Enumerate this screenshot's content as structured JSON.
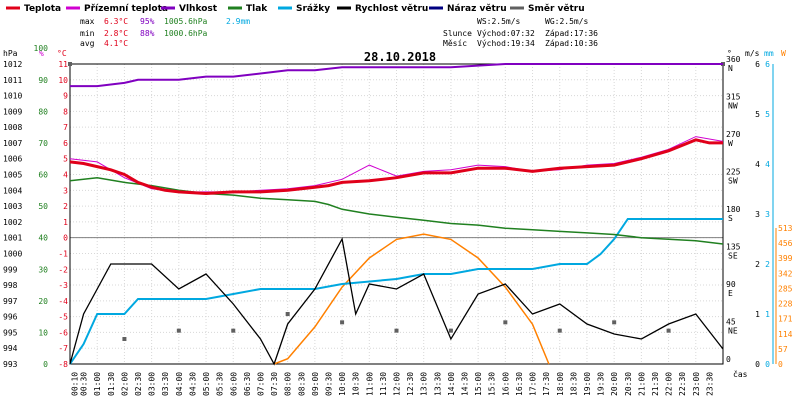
{
  "legend": [
    {
      "label": "Teplota",
      "color": "#e0001a"
    },
    {
      "label": "Přízemní teplota",
      "color": "#d000d0"
    },
    {
      "label": "Vlhkost",
      "color": "#8000c0"
    },
    {
      "label": "Tlak",
      "color": "#208020"
    },
    {
      "label": "Srážky",
      "color": "#00a8e0"
    },
    {
      "label": "Rychlost větru",
      "color": "#000000"
    },
    {
      "label": "Náraz větru",
      "color": "#000080"
    },
    {
      "label": "Směr větru",
      "color": "#606060"
    }
  ],
  "stats": {
    "max": {
      "label": "max",
      "temp": "6.3°C",
      "hum": "95%",
      "press": "1005.6hPa",
      "rain": "2.9mm"
    },
    "min": {
      "label": "min",
      "temp": "2.8°C",
      "hum": "88%",
      "press": "1000.6hPa"
    },
    "avg": {
      "label": "avg",
      "temp": "4.1°C"
    }
  },
  "info": {
    "ws": "WS:2.5m/s",
    "wg": "WG:2.5m/s",
    "sun_label": "Slunce",
    "sun_rise": "Východ:07:32",
    "sun_set": "Západ:17:36",
    "moon_label": "Měsíc",
    "moon_rise": "Východ:19:34",
    "moon_set": "Západ:10:36"
  },
  "units": {
    "hpa": "hPa",
    "pct": "%",
    "degc": "°C",
    "deg": "°",
    "ms": "m/s",
    "mm": "mm",
    "wm2": "W",
    "time": "čas"
  },
  "colors": {
    "temp": "#e0001a",
    "ground": "#d000d0",
    "hum": "#8000c0",
    "press": "#208020",
    "rain": "#00a8e0",
    "wind": "#000000",
    "gust": "#000080",
    "dir": "#606060",
    "solar": "#ff8000"
  },
  "chart_data": {
    "type": "line",
    "title": "28.10.2018",
    "x_ticks": [
      "00:10",
      "00:30",
      "01:00",
      "01:30",
      "02:00",
      "02:30",
      "03:00",
      "03:30",
      "04:00",
      "04:30",
      "05:00",
      "05:30",
      "06:00",
      "06:30",
      "07:00",
      "07:30",
      "08:00",
      "08:30",
      "09:00",
      "09:30",
      "10:00",
      "10:30",
      "11:00",
      "11:30",
      "12:00",
      "12:30",
      "13:00",
      "13:30",
      "14:00",
      "14:30",
      "15:00",
      "15:30",
      "16:00",
      "16:30",
      "17:00",
      "17:30",
      "18:00",
      "18:30",
      "19:00",
      "19:30",
      "20:00",
      "20:30",
      "21:00",
      "21:30",
      "22:00",
      "22:30",
      "23:00",
      "23:30"
    ],
    "axes": {
      "pressure_ticks": [
        "993",
        "994",
        "995",
        "996",
        "997",
        "998",
        "999",
        "1000",
        "1001",
        "1002",
        "1003",
        "1004",
        "1005",
        "1006",
        "1007",
        "1008",
        "1009",
        "1010",
        "1011",
        "1012"
      ],
      "humidity_ticks": [
        "0",
        "10",
        "20",
        "30",
        "40",
        "50",
        "60",
        "70",
        "80",
        "90",
        "100"
      ],
      "temp_ticks": [
        "-8",
        "-7",
        "-6",
        "-5",
        "-4",
        "-3",
        "-2",
        "-1",
        "0",
        "1",
        "2",
        "3",
        "4",
        "5",
        "6",
        "7",
        "8",
        "9",
        "10",
        "11"
      ],
      "dir_ticks": [
        "0",
        "45",
        "90",
        "135",
        "180",
        "225",
        "270",
        "315",
        "360"
      ],
      "dir_names": [
        "",
        "NE",
        "E",
        "SE",
        "S",
        "SW",
        "W",
        "NW",
        "N"
      ],
      "wind_ticks": [
        "0",
        "1",
        "2",
        "3",
        "4",
        "5",
        "6"
      ],
      "rain_ticks": [
        "0",
        "1",
        "2",
        "3",
        "4",
        "5",
        "6"
      ],
      "solar_ticks": [
        "0",
        "57",
        "114",
        "171",
        "228",
        "285",
        "342",
        "399",
        "456",
        "513"
      ]
    },
    "temperature": [
      [
        0,
        4.8
      ],
      [
        0.5,
        4.7
      ],
      [
        1,
        4.5
      ],
      [
        1.5,
        4.3
      ],
      [
        2,
        4
      ],
      [
        2.5,
        3.5
      ],
      [
        3,
        3.2
      ],
      [
        3.5,
        3
      ],
      [
        4,
        2.9
      ],
      [
        5,
        2.8
      ],
      [
        6,
        2.9
      ],
      [
        7,
        2.9
      ],
      [
        8,
        3
      ],
      [
        9,
        3.2
      ],
      [
        9.5,
        3.3
      ],
      [
        10,
        3.5
      ],
      [
        11,
        3.6
      ],
      [
        12,
        3.8
      ],
      [
        13,
        4.1
      ],
      [
        14,
        4.1
      ],
      [
        15,
        4.4
      ],
      [
        16,
        4.4
      ],
      [
        17,
        4.2
      ],
      [
        18,
        4.4
      ],
      [
        19,
        4.5
      ],
      [
        20,
        4.6
      ],
      [
        21,
        5
      ],
      [
        22,
        5.5
      ],
      [
        23,
        6.2
      ],
      [
        23.5,
        6
      ],
      [
        24,
        6
      ]
    ],
    "ground_temperature": [
      [
        0,
        5
      ],
      [
        1,
        4.8
      ],
      [
        2,
        3.8
      ],
      [
        3,
        3.1
      ],
      [
        4,
        2.9
      ],
      [
        6,
        2.9
      ],
      [
        8,
        3.1
      ],
      [
        9,
        3.3
      ],
      [
        10,
        3.7
      ],
      [
        11,
        4.6
      ],
      [
        12,
        3.9
      ],
      [
        13,
        4.2
      ],
      [
        14,
        4.3
      ],
      [
        15,
        4.6
      ],
      [
        16,
        4.5
      ],
      [
        17,
        4.2
      ],
      [
        18,
        4.3
      ],
      [
        19,
        4.6
      ],
      [
        20,
        4.7
      ],
      [
        21,
        5.1
      ],
      [
        22,
        5.6
      ],
      [
        23,
        6.4
      ],
      [
        24,
        6.1
      ]
    ],
    "humidity": [
      [
        0,
        88
      ],
      [
        1,
        88
      ],
      [
        2,
        89
      ],
      [
        2.5,
        90
      ],
      [
        4,
        90
      ],
      [
        5,
        91
      ],
      [
        6,
        91
      ],
      [
        7,
        92
      ],
      [
        8,
        93
      ],
      [
        9,
        93
      ],
      [
        10,
        94
      ],
      [
        12,
        94
      ],
      [
        14,
        94
      ],
      [
        16,
        95
      ],
      [
        18,
        95
      ],
      [
        20,
        95
      ],
      [
        22,
        95
      ],
      [
        24,
        95
      ]
    ],
    "pressure": [
      [
        0,
        1004.6
      ],
      [
        1,
        1004.8
      ],
      [
        2,
        1004.5
      ],
      [
        3,
        1004.3
      ],
      [
        4,
        1004
      ],
      [
        5,
        1003.8
      ],
      [
        6,
        1003.7
      ],
      [
        7,
        1003.5
      ],
      [
        8,
        1003.4
      ],
      [
        9,
        1003.3
      ],
      [
        9.5,
        1003.1
      ],
      [
        10,
        1002.8
      ],
      [
        11,
        1002.5
      ],
      [
        12,
        1002.3
      ],
      [
        13,
        1002.1
      ],
      [
        14,
        1001.9
      ],
      [
        15,
        1001.8
      ],
      [
        16,
        1001.6
      ],
      [
        17,
        1001.5
      ],
      [
        18,
        1001.4
      ],
      [
        19,
        1001.3
      ],
      [
        20,
        1001.2
      ],
      [
        21,
        1001
      ],
      [
        22,
        1000.9
      ],
      [
        23,
        1000.8
      ],
      [
        24,
        1000.6
      ]
    ],
    "rain_total": [
      [
        0,
        0
      ],
      [
        0.5,
        0.4
      ],
      [
        1,
        1
      ],
      [
        2,
        1
      ],
      [
        2.5,
        1.3
      ],
      [
        4,
        1.3
      ],
      [
        5,
        1.3
      ],
      [
        6,
        1.4
      ],
      [
        7,
        1.5
      ],
      [
        9,
        1.5
      ],
      [
        10,
        1.6
      ],
      [
        12,
        1.7
      ],
      [
        13,
        1.8
      ],
      [
        14,
        1.8
      ],
      [
        15,
        1.9
      ],
      [
        17,
        1.9
      ],
      [
        18,
        2
      ],
      [
        19,
        2
      ],
      [
        19.5,
        2.2
      ],
      [
        20,
        2.5
      ],
      [
        20.5,
        2.9
      ],
      [
        24,
        2.9
      ]
    ],
    "wind_speed": [
      [
        0,
        0
      ],
      [
        0.5,
        1
      ],
      [
        1,
        1.5
      ],
      [
        1.5,
        2
      ],
      [
        2,
        2
      ],
      [
        3,
        2
      ],
      [
        4,
        1.5
      ],
      [
        5,
        1.8
      ],
      [
        6,
        1.2
      ],
      [
        7,
        0.5
      ],
      [
        7.5,
        0
      ],
      [
        8,
        0.8
      ],
      [
        9,
        1.5
      ],
      [
        10,
        2.5
      ],
      [
        10.5,
        1
      ],
      [
        11,
        1.6
      ],
      [
        12,
        1.5
      ],
      [
        13,
        1.8
      ],
      [
        14,
        0.5
      ],
      [
        15,
        1.4
      ],
      [
        16,
        1.6
      ],
      [
        17,
        1
      ],
      [
        18,
        1.2
      ],
      [
        19,
        0.8
      ],
      [
        20,
        0.6
      ],
      [
        21,
        0.5
      ],
      [
        22,
        0.8
      ],
      [
        23,
        1
      ],
      [
        24,
        0.3
      ]
    ],
    "wind_dir": [
      [
        0,
        360
      ],
      [
        2,
        30
      ],
      [
        4,
        40
      ],
      [
        6,
        40
      ],
      [
        8,
        60
      ],
      [
        10,
        50
      ],
      [
        12,
        40
      ],
      [
        14,
        40
      ],
      [
        16,
        50
      ],
      [
        18,
        40
      ],
      [
        20,
        50
      ],
      [
        22,
        40
      ],
      [
        24,
        360
      ]
    ],
    "solar": [
      [
        7.5,
        0
      ],
      [
        8,
        20
      ],
      [
        9,
        140
      ],
      [
        10,
        290
      ],
      [
        11,
        400
      ],
      [
        12,
        470
      ],
      [
        13,
        490
      ],
      [
        14,
        470
      ],
      [
        15,
        400
      ],
      [
        16,
        290
      ],
      [
        17,
        150
      ],
      [
        17.6,
        0
      ]
    ]
  }
}
